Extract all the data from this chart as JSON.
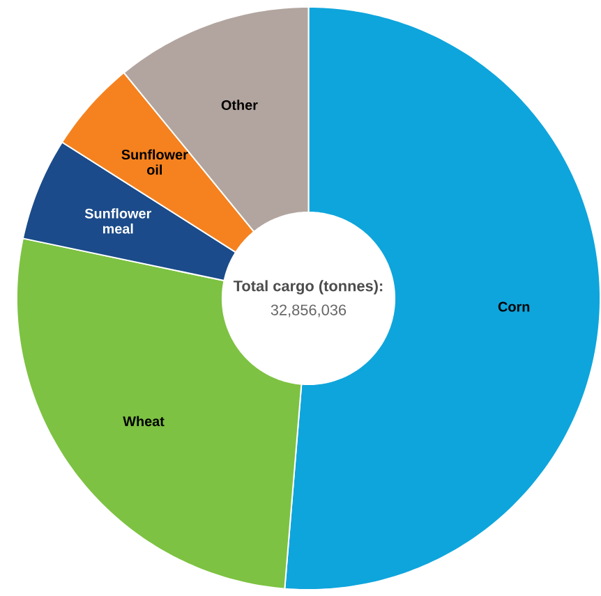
{
  "chart_data": {
    "type": "donut",
    "title": "Total cargo (tonnes):",
    "subtitle": "32,856,036",
    "categories": [
      "Corn",
      "Wheat",
      "Sunflower meal",
      "Sunflower oil",
      "Other"
    ],
    "values": [
      51.3,
      27,
      5.7,
      5.1,
      10.9
    ],
    "colors": [
      "#0ea5dc",
      "#7dc242",
      "#1b4b8a",
      "#f5821f",
      "#b2a59f"
    ],
    "legend": false
  }
}
